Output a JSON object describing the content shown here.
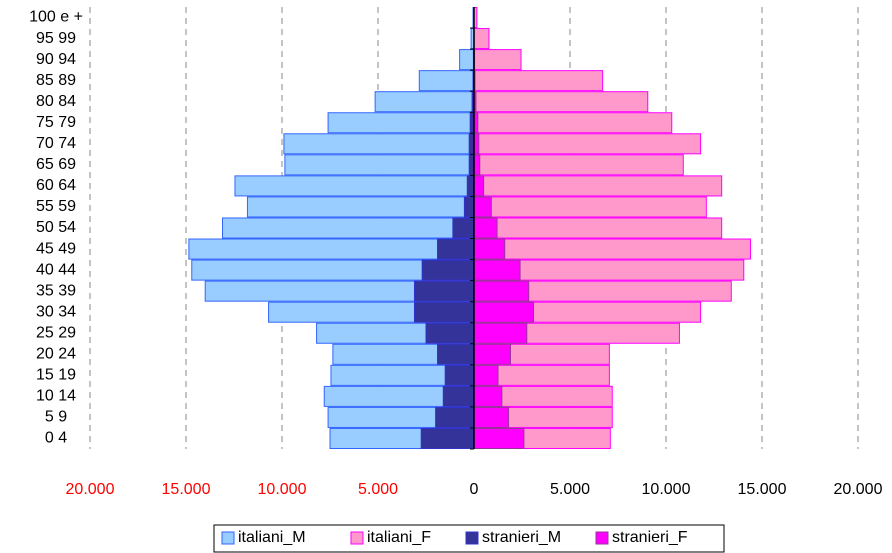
{
  "chart_data": {
    "type": "pyramid",
    "categories": [
      "0 4",
      "5 9",
      "10 14",
      "15 19",
      "20 24",
      "25 29",
      "30 34",
      "35 39",
      "40 44",
      "45 49",
      "50 54",
      "55 59",
      "60 64",
      "65 69",
      "70 74",
      "75 79",
      "80 84",
      "85 89",
      "90 94",
      "95 99",
      "100 e +"
    ],
    "series": [
      {
        "name": "italiani_M",
        "color": "#99ccff",
        "border": "#3366ff",
        "values": [
          -7500,
          -7600,
          -7800,
          -7450,
          -7350,
          -8200,
          -10700,
          -14000,
          -14700,
          -14850,
          -13100,
          -11800,
          -12450,
          -9850,
          -9900,
          -7600,
          -5150,
          -2850,
          -750,
          -150,
          -50
        ]
      },
      {
        "name": "italiani_F",
        "color": "#ff99cc",
        "border": "#ff00ff",
        "values": [
          7100,
          7200,
          7200,
          7050,
          7050,
          10700,
          11800,
          13400,
          14050,
          14400,
          12900,
          12100,
          12900,
          10900,
          11800,
          10300,
          9050,
          6700,
          2450,
          780,
          150
        ]
      },
      {
        "name": "stranieri_M",
        "color": "#333399",
        "border": "#3333cc",
        "values": [
          -2750,
          -2000,
          -1600,
          -1500,
          -1900,
          -2500,
          -3100,
          -3100,
          -2700,
          -1900,
          -1100,
          -500,
          -350,
          -250,
          -250,
          -200,
          -100,
          -50,
          -30,
          -10,
          0
        ]
      },
      {
        "name": "stranieri_F",
        "color": "#ff00ff",
        "border": "#993399",
        "values": [
          2600,
          1800,
          1450,
          1250,
          1900,
          2750,
          3100,
          2850,
          2400,
          1600,
          1200,
          900,
          500,
          300,
          250,
          200,
          100,
          50,
          30,
          10,
          0
        ]
      }
    ],
    "xlim": [
      -20000,
      20000
    ],
    "xticks": [
      {
        "value": -20000,
        "label": "20.000"
      },
      {
        "value": -15000,
        "label": "15.000"
      },
      {
        "value": -10000,
        "label": "10.000"
      },
      {
        "value": -5000,
        "label": "5.000"
      },
      0,
      {
        "value": 5000,
        "label": "5.000"
      },
      {
        "value": 10000,
        "label": "10.000"
      },
      {
        "value": 15000,
        "label": "15.000"
      },
      {
        "value": 20000,
        "label": "20.000"
      }
    ],
    "negative_tick_color": "#ff0000",
    "grid": true,
    "legend": "bottom"
  }
}
